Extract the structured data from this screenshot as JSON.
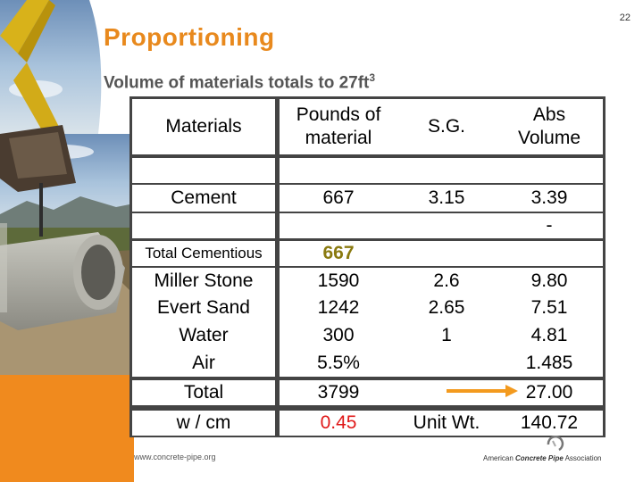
{
  "slide": {
    "title": "Proportioning",
    "subtitle": "Volume of materials totals to 27ft",
    "subtitle_sup": "3",
    "page_number": "22",
    "footer_url": "www.concrete-pipe.org",
    "logo_prefix": "American ",
    "logo_bold": "Concrete Pipe",
    "logo_suffix": " Association"
  },
  "table": {
    "headers": [
      "Materials",
      "Pounds of\nmaterial",
      "S.G.",
      "Abs\nVolume"
    ],
    "rows": [
      {
        "material": "Cement",
        "pounds": "667",
        "sg": "3.15",
        "abs": "3.39"
      },
      {
        "material": "",
        "pounds": "",
        "sg": "",
        "abs": "-"
      },
      {
        "material": "Total Cementious",
        "pounds": "667",
        "sg": "",
        "abs": ""
      },
      {
        "material": "Miller Stone",
        "pounds": "1590",
        "sg": "2.6",
        "abs": "9.80"
      },
      {
        "material": "Evert Sand",
        "pounds": "1242",
        "sg": "2.65",
        "abs": "7.51"
      },
      {
        "material": "Water",
        "pounds": "300",
        "sg": "1",
        "abs": "4.81"
      },
      {
        "material": "Air",
        "pounds": "5.5%",
        "sg": "",
        "abs": "1.485"
      },
      {
        "material": "Total",
        "pounds": "3799",
        "sg": "",
        "abs": "27.00"
      },
      {
        "material": "w / cm",
        "pounds": "0.45",
        "sg": "Unit Wt.",
        "abs": "140.72"
      }
    ]
  },
  "colors": {
    "title": "#e8891d",
    "orange_band": "#f08a1e",
    "arrow": "#f39a1e",
    "wcm_value": "#e01818",
    "total_cementious_value": "#8a7a10"
  }
}
